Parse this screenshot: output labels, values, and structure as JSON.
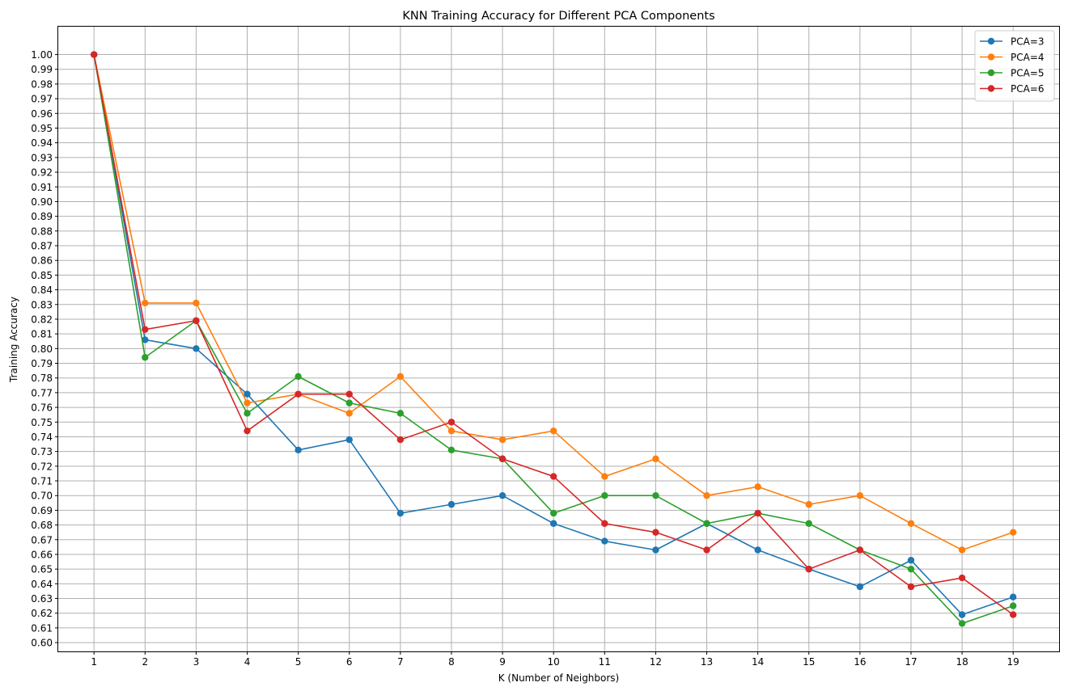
{
  "chart_data": {
    "type": "line",
    "title": "KNN Training Accuracy for Different PCA Components",
    "xlabel": "K (Number of Neighbors)",
    "ylabel": "Training Accuracy",
    "x": [
      1,
      2,
      3,
      4,
      5,
      6,
      7,
      8,
      9,
      10,
      11,
      12,
      13,
      14,
      15,
      16,
      17,
      18,
      19
    ],
    "xlim": [
      0.3,
      19.9
    ],
    "ylim": [
      0.594,
      1.019
    ],
    "yticks": [
      0.6,
      0.61,
      0.62,
      0.63,
      0.64,
      0.65,
      0.66,
      0.67,
      0.68,
      0.69,
      0.7,
      0.71,
      0.72,
      0.73,
      0.74,
      0.75,
      0.76,
      0.77,
      0.78,
      0.79,
      0.8,
      0.81,
      0.82,
      0.83,
      0.84,
      0.85,
      0.86,
      0.87,
      0.88,
      0.89,
      0.9,
      0.91,
      0.92,
      0.93,
      0.94,
      0.95,
      0.96,
      0.97,
      0.98,
      0.99,
      1.0
    ],
    "grid": true,
    "legend_position": "top-right",
    "series": [
      {
        "name": "PCA=3",
        "color": "#1f77b4",
        "values": [
          1.0,
          0.806,
          0.8,
          0.769,
          0.731,
          0.738,
          0.688,
          0.694,
          0.7,
          0.681,
          0.669,
          0.663,
          0.681,
          0.663,
          0.65,
          0.638,
          0.656,
          0.619,
          0.631
        ]
      },
      {
        "name": "PCA=4",
        "color": "#ff7f0e",
        "values": [
          1.0,
          0.831,
          0.831,
          0.763,
          0.769,
          0.756,
          0.781,
          0.744,
          0.738,
          0.744,
          0.713,
          0.725,
          0.7,
          0.706,
          0.694,
          0.7,
          0.681,
          0.663,
          0.675
        ]
      },
      {
        "name": "PCA=5",
        "color": "#2ca02c",
        "values": [
          1.0,
          0.794,
          0.819,
          0.756,
          0.781,
          0.763,
          0.756,
          0.731,
          0.725,
          0.688,
          0.7,
          0.7,
          0.681,
          0.688,
          0.681,
          0.663,
          0.65,
          0.613,
          0.625
        ]
      },
      {
        "name": "PCA=6",
        "color": "#d62728",
        "values": [
          1.0,
          0.813,
          0.819,
          0.744,
          0.769,
          0.769,
          0.738,
          0.75,
          0.725,
          0.713,
          0.681,
          0.675,
          0.663,
          0.688,
          0.65,
          0.663,
          0.638,
          0.644,
          0.619
        ]
      }
    ]
  }
}
